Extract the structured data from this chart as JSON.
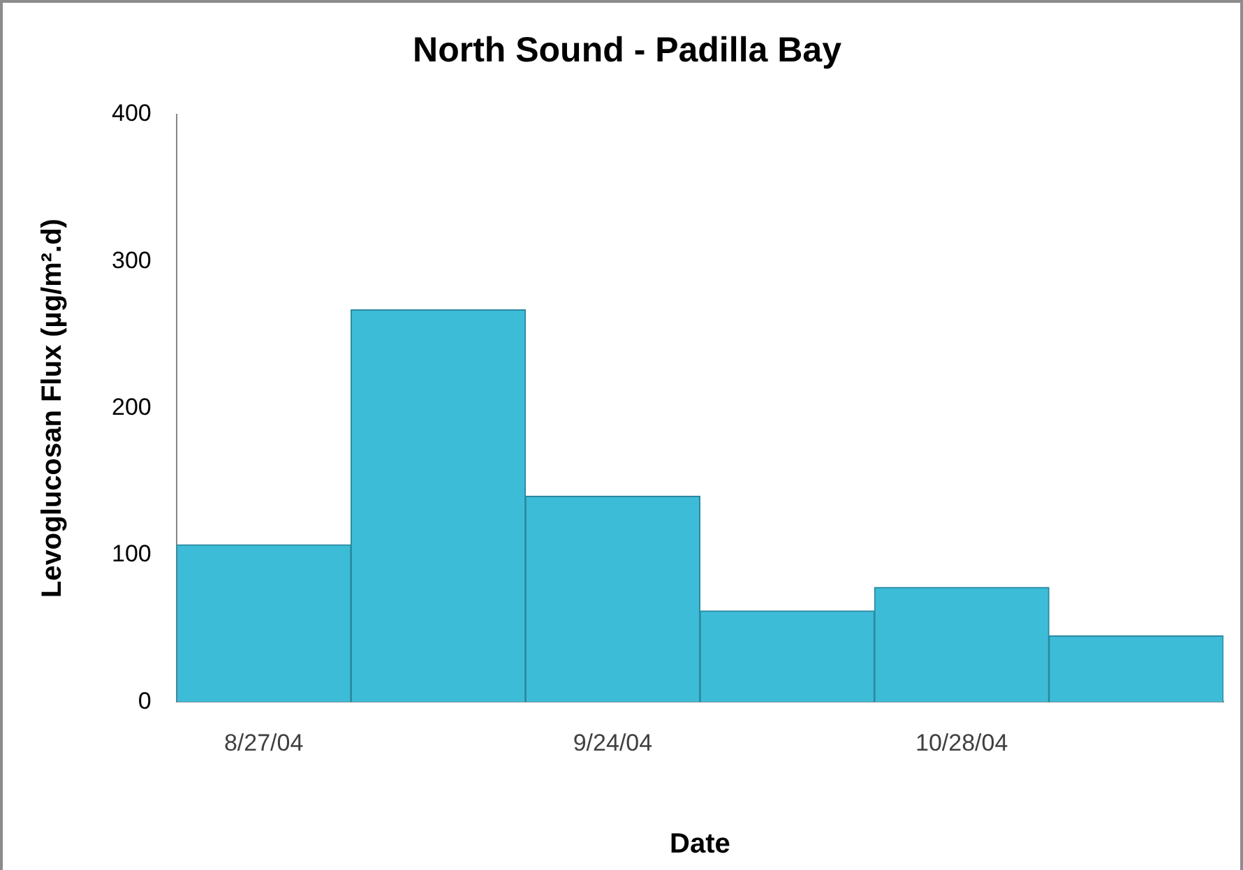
{
  "chart_data": {
    "type": "bar",
    "title": "North Sound - Padilla Bay",
    "xlabel": "Date",
    "ylabel": "Levoglucosan Flux (µg/m².d)",
    "categories": [
      "8/27/04",
      null,
      "9/24/04",
      null,
      "10/28/04",
      null
    ],
    "values": [
      107,
      267,
      140,
      62,
      78,
      45
    ],
    "color": "#3dbcd8",
    "ylim": [
      0,
      400
    ],
    "yticks": [
      0,
      100,
      200,
      300,
      400
    ],
    "grid": false
  }
}
